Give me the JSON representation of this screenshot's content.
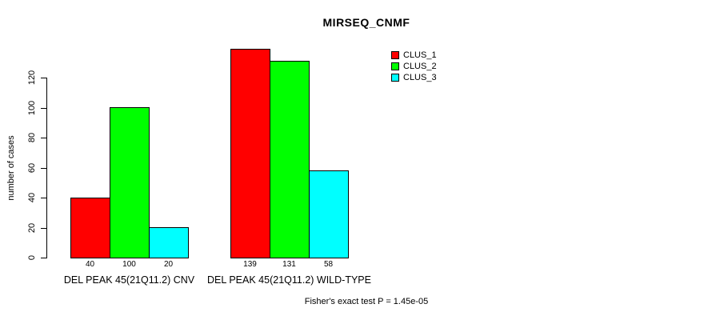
{
  "chart_data": {
    "type": "bar",
    "title": "MIRSEQ_CNMF",
    "ylabel": "number of cases",
    "xlabel": "",
    "yticks": [
      0,
      20,
      40,
      60,
      80,
      100,
      120
    ],
    "ylim": [
      0,
      139
    ],
    "grid": false,
    "legend_position": "top-right-inside",
    "categories": [
      "DEL PEAK 45(21Q11.2) CNV",
      "DEL PEAK 45(21Q11.2) WILD-TYPE"
    ],
    "series": [
      {
        "name": "CLUS_1",
        "color": "#ff0000",
        "values": [
          40,
          139
        ]
      },
      {
        "name": "CLUS_2",
        "color": "#00ff00",
        "values": [
          100,
          131
        ]
      },
      {
        "name": "CLUS_3",
        "color": "#00ffff",
        "values": [
          20,
          58
        ]
      }
    ],
    "bar_value_labels": [
      [
        "40",
        "100",
        "20"
      ],
      [
        "139",
        "131",
        "58"
      ]
    ],
    "annotation": "Fisher's exact test P = 1.45e-05",
    "axis_color": "#000000",
    "background_color": "#ffffff"
  }
}
